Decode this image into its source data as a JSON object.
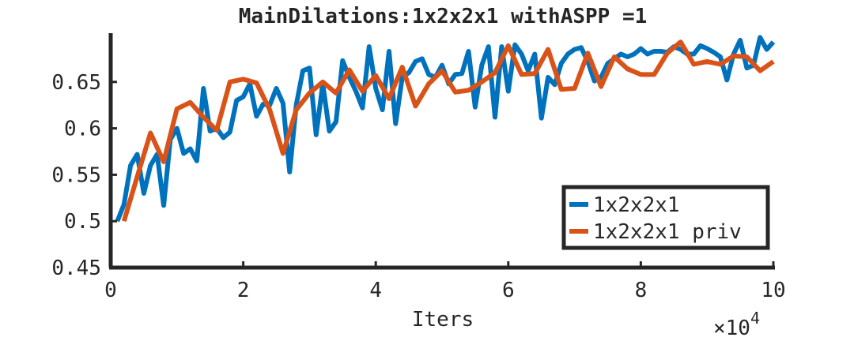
{
  "chart_data": {
    "type": "line",
    "title": "MainDilations:1x2x2x1 withASPP =1",
    "xlabel": "Iters",
    "x_exponent_label": "×10",
    "x_exponent_power": "4",
    "ylabel": "",
    "xlim": [
      0,
      100000
    ],
    "ylim": [
      0.45,
      0.7
    ],
    "x_ticks": [
      0,
      20000,
      40000,
      60000,
      80000,
      100000
    ],
    "x_tick_labels": [
      "0",
      "2",
      "4",
      "6",
      "8",
      "10"
    ],
    "y_ticks": [
      0.45,
      0.5,
      0.55,
      0.6,
      0.65
    ],
    "y_tick_labels": [
      "0.45",
      "0.5",
      "0.55",
      "0.6",
      "0.65"
    ],
    "grid": false,
    "legend_position": "bottom-right",
    "series": [
      {
        "name": "1x2x2x1",
        "color": "#0072BD",
        "x": [
          1000,
          2000,
          3000,
          4000,
          5000,
          6000,
          7000,
          8000,
          9000,
          10000,
          11000,
          12000,
          13000,
          14000,
          15000,
          16000,
          17000,
          18000,
          19000,
          20000,
          21000,
          22000,
          23000,
          24000,
          25000,
          26000,
          27000,
          28000,
          29000,
          30000,
          31000,
          32000,
          33000,
          34000,
          35000,
          36000,
          37000,
          38000,
          39000,
          40000,
          41000,
          42000,
          43000,
          44000,
          45000,
          46000,
          47000,
          48000,
          49000,
          50000,
          51000,
          52000,
          53000,
          54000,
          55000,
          56000,
          57000,
          58000,
          59000,
          60000,
          61000,
          62000,
          63000,
          64000,
          65000,
          66000,
          67000,
          68000,
          69000,
          70000,
          71000,
          72000,
          73000,
          74000,
          75000,
          76000,
          77000,
          78000,
          79000,
          80000,
          81000,
          82000,
          83000,
          84000,
          85000,
          86000,
          87000,
          88000,
          89000,
          90000,
          91000,
          92000,
          93000,
          94000,
          95000,
          96000,
          97000,
          98000,
          99000,
          100000
        ],
        "values": [
          0.5,
          0.518,
          0.56,
          0.572,
          0.53,
          0.56,
          0.572,
          0.517,
          0.588,
          0.6,
          0.573,
          0.578,
          0.565,
          0.643,
          0.597,
          0.6,
          0.59,
          0.596,
          0.63,
          0.634,
          0.648,
          0.613,
          0.626,
          0.625,
          0.643,
          0.627,
          0.553,
          0.625,
          0.662,
          0.665,
          0.593,
          0.648,
          0.597,
          0.607,
          0.673,
          0.655,
          0.64,
          0.622,
          0.688,
          0.643,
          0.62,
          0.683,
          0.605,
          0.655,
          0.66,
          0.672,
          0.675,
          0.658,
          0.655,
          0.668,
          0.648,
          0.658,
          0.659,
          0.683,
          0.623,
          0.668,
          0.688,
          0.612,
          0.688,
          0.64,
          0.69,
          0.68,
          0.662,
          0.68,
          0.611,
          0.655,
          0.647,
          0.67,
          0.68,
          0.685,
          0.687,
          0.672,
          0.651,
          0.655,
          0.67,
          0.675,
          0.68,
          0.677,
          0.68,
          0.686,
          0.68,
          0.683,
          0.683,
          0.682,
          0.688,
          0.685,
          0.68,
          0.68,
          0.689,
          0.686,
          0.682,
          0.677,
          0.652,
          0.68,
          0.695,
          0.665,
          0.668,
          0.698,
          0.685,
          0.693
        ]
      },
      {
        "name": "1x2x2x1 priv",
        "color": "#D95319",
        "x": [
          2000,
          4000,
          6000,
          8000,
          10000,
          12000,
          14000,
          16000,
          18000,
          20000,
          22000,
          24000,
          26000,
          28000,
          30000,
          32000,
          34000,
          36000,
          38000,
          40000,
          42000,
          44000,
          46000,
          48000,
          50000,
          52000,
          54000,
          56000,
          58000,
          60000,
          62000,
          64000,
          66000,
          68000,
          70000,
          72000,
          74000,
          76000,
          78000,
          80000,
          82000,
          84000,
          86000,
          88000,
          90000,
          92000,
          94000,
          96000,
          98000,
          100000
        ],
        "values": [
          0.5,
          0.548,
          0.595,
          0.564,
          0.621,
          0.628,
          0.612,
          0.598,
          0.65,
          0.653,
          0.649,
          0.62,
          0.573,
          0.62,
          0.638,
          0.65,
          0.638,
          0.663,
          0.64,
          0.657,
          0.632,
          0.666,
          0.624,
          0.648,
          0.662,
          0.639,
          0.641,
          0.65,
          0.66,
          0.689,
          0.658,
          0.659,
          0.685,
          0.642,
          0.643,
          0.681,
          0.645,
          0.677,
          0.664,
          0.658,
          0.658,
          0.681,
          0.693,
          0.669,
          0.672,
          0.669,
          0.678,
          0.677,
          0.662,
          0.672
        ]
      }
    ]
  }
}
